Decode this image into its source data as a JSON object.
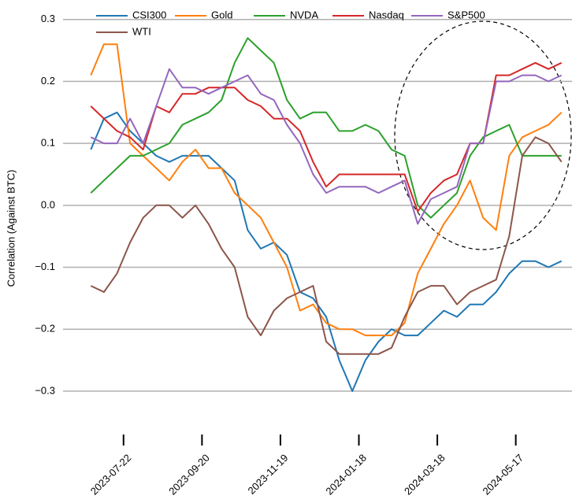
{
  "chart_data": {
    "type": "line",
    "y_label": "Correlation (Against BTC)",
    "x": [
      "2023-06-27",
      "2023-07-07",
      "2023-07-17",
      "2023-07-27",
      "2023-08-06",
      "2023-08-16",
      "2023-08-26",
      "2023-09-05",
      "2023-09-15",
      "2023-09-25",
      "2023-10-05",
      "2023-10-15",
      "2023-10-25",
      "2023-11-04",
      "2023-11-14",
      "2023-11-24",
      "2023-12-04",
      "2023-12-14",
      "2023-12-24",
      "2024-01-03",
      "2024-01-13",
      "2024-01-23",
      "2024-02-02",
      "2024-02-12",
      "2024-02-22",
      "2024-03-03",
      "2024-03-13",
      "2024-03-23",
      "2024-04-02",
      "2024-04-12",
      "2024-04-22",
      "2024-05-02",
      "2024-05-12",
      "2024-05-22",
      "2024-06-01",
      "2024-06-11",
      "2024-06-21"
    ],
    "series": [
      {
        "name": "CSI300",
        "color": "#1f77b4",
        "values": [
          0.09,
          0.14,
          0.15,
          0.12,
          0.1,
          0.08,
          0.07,
          0.08,
          0.08,
          0.08,
          0.06,
          0.04,
          -0.04,
          -0.07,
          -0.06,
          -0.08,
          -0.14,
          -0.15,
          -0.18,
          -0.25,
          -0.3,
          -0.25,
          -0.22,
          -0.2,
          -0.21,
          -0.21,
          -0.19,
          -0.17,
          -0.18,
          -0.16,
          -0.16,
          -0.14,
          -0.11,
          -0.09,
          -0.09,
          -0.1,
          -0.09
        ]
      },
      {
        "name": "Gold",
        "color": "#ff7f0e",
        "values": [
          0.21,
          0.26,
          0.26,
          0.1,
          0.08,
          0.06,
          0.04,
          0.07,
          0.09,
          0.06,
          0.06,
          0.02,
          0.0,
          -0.02,
          -0.06,
          -0.1,
          -0.17,
          -0.16,
          -0.19,
          -0.2,
          -0.2,
          -0.21,
          -0.21,
          -0.21,
          -0.19,
          -0.11,
          -0.07,
          -0.03,
          0.0,
          0.04,
          -0.02,
          -0.04,
          0.08,
          0.11,
          0.12,
          0.13,
          0.15
        ]
      },
      {
        "name": "NVDA",
        "color": "#2ca02c",
        "values": [
          0.02,
          0.04,
          0.06,
          0.08,
          0.08,
          0.09,
          0.1,
          0.13,
          0.14,
          0.15,
          0.17,
          0.23,
          0.27,
          0.25,
          0.23,
          0.17,
          0.14,
          0.15,
          0.15,
          0.12,
          0.12,
          0.13,
          0.12,
          0.09,
          0.08,
          0.0,
          -0.02,
          0.0,
          0.02,
          0.08,
          0.11,
          0.12,
          0.13,
          0.08,
          0.08,
          0.08,
          0.08
        ]
      },
      {
        "name": "Nasdaq",
        "color": "#d62728",
        "values": [
          0.16,
          0.14,
          0.12,
          0.11,
          0.09,
          0.16,
          0.15,
          0.18,
          0.18,
          0.19,
          0.19,
          0.19,
          0.17,
          0.16,
          0.14,
          0.14,
          0.12,
          0.07,
          0.03,
          0.05,
          0.05,
          0.05,
          0.05,
          0.05,
          0.05,
          -0.01,
          0.02,
          0.04,
          0.05,
          0.1,
          0.1,
          0.21,
          0.21,
          0.22,
          0.23,
          0.22,
          0.23
        ]
      },
      {
        "name": "S&P500",
        "color": "#9467bd",
        "values": [
          0.11,
          0.1,
          0.1,
          0.14,
          0.1,
          0.16,
          0.22,
          0.19,
          0.19,
          0.18,
          0.19,
          0.2,
          0.21,
          0.18,
          0.17,
          0.13,
          0.1,
          0.05,
          0.02,
          0.03,
          0.03,
          0.03,
          0.02,
          0.03,
          0.04,
          -0.03,
          0.01,
          0.02,
          0.03,
          0.1,
          0.1,
          0.2,
          0.2,
          0.21,
          0.21,
          0.2,
          0.21
        ]
      },
      {
        "name": "WTI",
        "color": "#8c564b",
        "values": [
          -0.13,
          -0.14,
          -0.11,
          -0.06,
          -0.02,
          0.0,
          0.0,
          -0.02,
          0.0,
          -0.03,
          -0.07,
          -0.1,
          -0.18,
          -0.21,
          -0.17,
          -0.15,
          -0.14,
          -0.13,
          -0.22,
          -0.24,
          -0.24,
          -0.24,
          -0.24,
          -0.23,
          -0.18,
          -0.14,
          -0.13,
          -0.13,
          -0.16,
          -0.14,
          -0.13,
          -0.12,
          -0.05,
          0.08,
          0.11,
          0.1,
          0.07
        ]
      }
    ],
    "xlim": [
      "2023-06-22",
      "2024-06-29"
    ],
    "xticks": [
      "2023-07-22",
      "2023-09-20",
      "2023-11-19",
      "2024-01-18",
      "2024-03-18",
      "2024-05-17"
    ],
    "ylim": [
      -0.37,
      0.32
    ],
    "yticks": [
      {
        "value": -0.3,
        "label": "−0.3"
      },
      {
        "value": -0.2,
        "label": "−0.2"
      },
      {
        "value": -0.1,
        "label": "−0.1"
      },
      {
        "value": 0.0,
        "label": "0.0"
      },
      0.1,
      0.2,
      0.3
    ],
    "grid": true,
    "legend": "upper center"
  }
}
